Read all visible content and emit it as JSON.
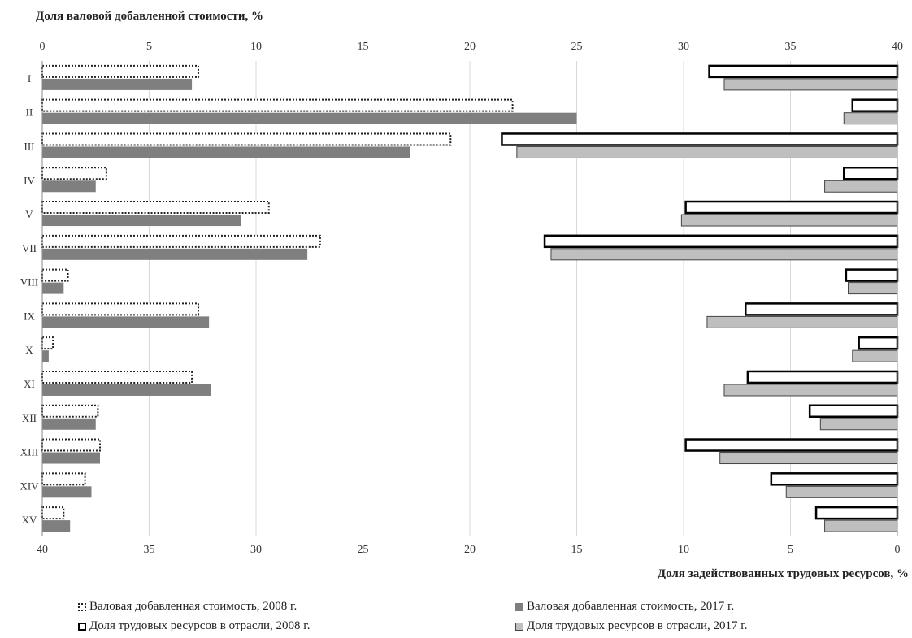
{
  "chart_data": {
    "type": "bar",
    "orientation": "horizontal",
    "categories": [
      "I",
      "II",
      "III",
      "IV",
      "V",
      "VII",
      "VIII",
      "IX",
      "X",
      "XI",
      "XII",
      "XIII",
      "XIV",
      "XV"
    ],
    "top_axis": {
      "title": "Доля валовой добавленной стоимости, %",
      "ticks": [
        "0",
        "5",
        "10",
        "15",
        "20",
        "25",
        "30",
        "35",
        "40"
      ],
      "range": [
        0,
        40
      ]
    },
    "bottom_axis": {
      "title": "Доля задействованных трудовых ресурсов, %",
      "ticks": [
        "40",
        "35",
        "30",
        "25",
        "20",
        "15",
        "10",
        "5",
        "0"
      ],
      "range": [
        40,
        0
      ]
    },
    "grid": true,
    "series": [
      {
        "name": "Валовая добавленная стоимость, 2008 г.",
        "axis": "top",
        "style": "dotted-outline",
        "values": [
          7.3,
          22.0,
          19.1,
          3.0,
          10.6,
          13.0,
          1.2,
          7.3,
          0.5,
          7.0,
          2.6,
          2.7,
          2.0,
          1.0
        ]
      },
      {
        "name": "Валовая добавленная стоимость, 2017 г.",
        "axis": "top",
        "style": "dark-gray",
        "values": [
          7.0,
          25.0,
          17.2,
          2.5,
          9.3,
          12.4,
          1.0,
          7.8,
          0.3,
          7.9,
          2.5,
          2.7,
          2.3,
          1.3
        ]
      },
      {
        "name": "Доля трудовых ресурсов в отрасли, 2008 г.",
        "axis": "bottom",
        "style": "black-outline",
        "values": [
          8.8,
          2.1,
          18.5,
          2.5,
          9.9,
          16.5,
          2.4,
          7.1,
          1.8,
          7.0,
          4.1,
          9.9,
          5.9,
          3.8
        ]
      },
      {
        "name": "Доля трудовых ресурсов в отрасли, 2017 г.",
        "axis": "bottom",
        "style": "light-gray",
        "values": [
          8.1,
          2.5,
          17.8,
          3.4,
          10.1,
          16.2,
          2.3,
          8.9,
          2.1,
          8.1,
          3.6,
          8.3,
          5.2,
          3.4
        ]
      }
    ],
    "legend_position": "bottom",
    "colors": {
      "gva2017": "#7f7f7f",
      "labor2017": "#bfbfbf",
      "grid": "#d9d9d9"
    }
  }
}
